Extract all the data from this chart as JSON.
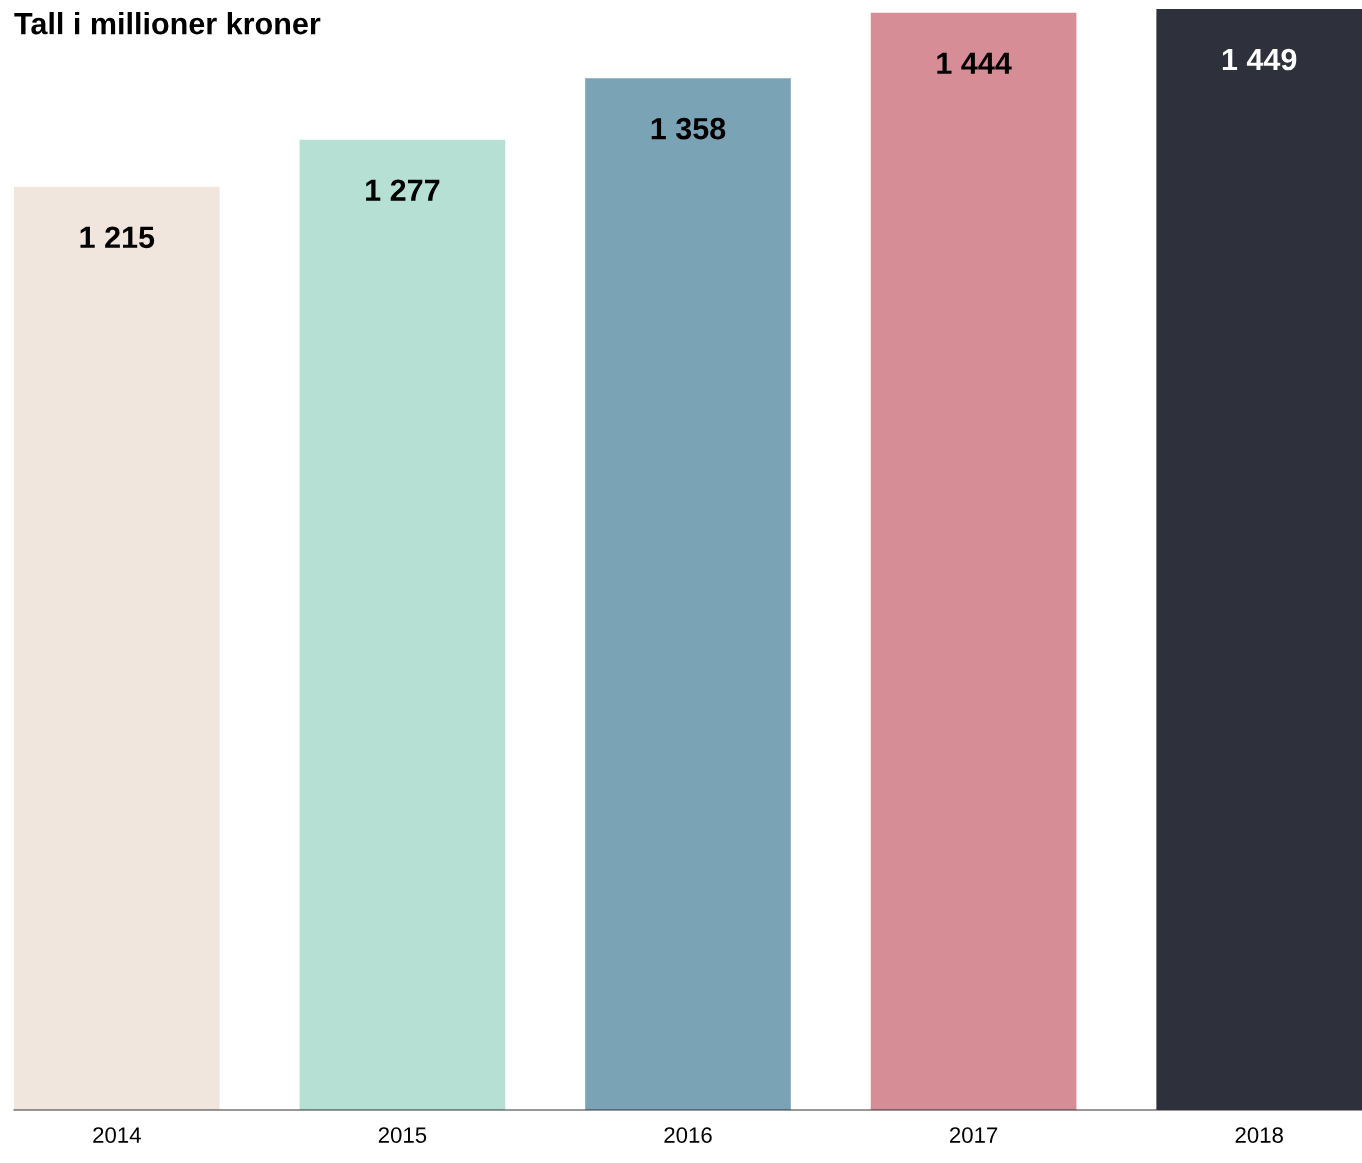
{
  "chart_data": {
    "type": "bar",
    "title": "Tall i millioner kroner",
    "categories": [
      "2014",
      "2015",
      "2016",
      "2017",
      "2018"
    ],
    "values": [
      1215,
      1277,
      1358,
      1444,
      1449
    ],
    "value_labels": [
      "1 215",
      "1 277",
      "1 358",
      "1 444",
      "1 449"
    ],
    "colors": [
      "#f1e6dd",
      "#b7e0d5",
      "#7aa3b5",
      "#d68d96",
      "#2e303b"
    ],
    "grid": false,
    "legend": false
  }
}
